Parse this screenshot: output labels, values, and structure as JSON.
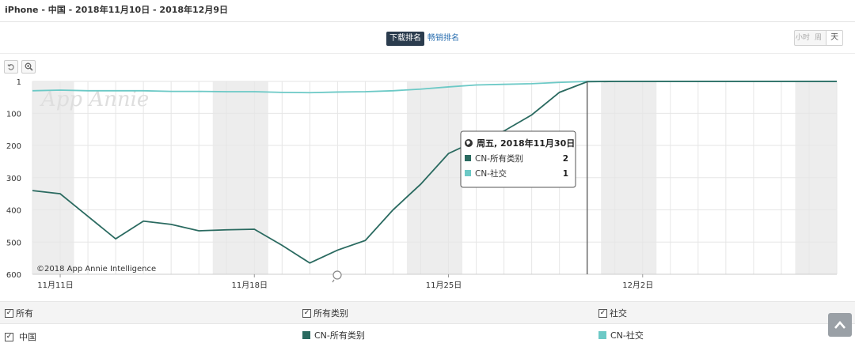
{
  "header": {
    "title": "iPhone - 中国 - 2018年11月10日 - 2018年12月9日"
  },
  "rank_tabs": {
    "download": "下载排名",
    "revenue": "畅销排名"
  },
  "granularity": {
    "hour": "小时",
    "week": "周",
    "day": "天"
  },
  "toolbar": {
    "reset_icon": "reset-icon",
    "zoom_icon": "zoom-icon"
  },
  "chart_data": {
    "type": "line",
    "watermark": "App Annie",
    "credit": "©2018 App Annie Intelligence",
    "x_ticks": [
      "11月11日",
      "11月18日",
      "11月25日",
      "12月2日"
    ],
    "y_ticks": [
      "1",
      "100",
      "200",
      "300",
      "400",
      "500",
      "600"
    ],
    "ylim": [
      1,
      600
    ],
    "y_reversed": true,
    "x": [
      "2018-11-10",
      "2018-11-11",
      "2018-11-12",
      "2018-11-13",
      "2018-11-14",
      "2018-11-15",
      "2018-11-16",
      "2018-11-17",
      "2018-11-18",
      "2018-11-19",
      "2018-11-20",
      "2018-11-21",
      "2018-11-22",
      "2018-11-23",
      "2018-11-24",
      "2018-11-25",
      "2018-11-26",
      "2018-11-27",
      "2018-11-28",
      "2018-11-29",
      "2018-11-30",
      "2018-12-01",
      "2018-12-02",
      "2018-12-03",
      "2018-12-04",
      "2018-12-05",
      "2018-12-06",
      "2018-12-07",
      "2018-12-08",
      "2018-12-09"
    ],
    "series": [
      {
        "name": "CN-所有类别",
        "color": "#2a6a60",
        "values": [
          340,
          350,
          420,
          490,
          435,
          445,
          465,
          462,
          460,
          510,
          565,
          525,
          495,
          400,
          320,
          225,
          185,
          155,
          105,
          35,
          2,
          1,
          1,
          1,
          1,
          1,
          1,
          1,
          1,
          1
        ]
      },
      {
        "name": "CN-社交",
        "color": "#6cc9c6",
        "values": [
          30,
          28,
          30,
          30,
          30,
          32,
          32,
          33,
          33,
          35,
          36,
          34,
          33,
          30,
          25,
          18,
          12,
          10,
          8,
          4,
          1,
          1,
          1,
          1,
          1,
          1,
          1,
          1,
          1,
          1
        ]
      }
    ],
    "weekend_bands": [
      [
        "2018-11-10",
        "2018-11-11"
      ],
      [
        "2018-11-17",
        "2018-11-18"
      ],
      [
        "2018-11-24",
        "2018-11-25"
      ],
      [
        "2018-12-01",
        "2018-12-02"
      ],
      [
        "2018-12-08",
        "2018-12-09"
      ]
    ],
    "tooltip": {
      "date": "周五, 2018年11月30日",
      "rows": [
        {
          "name": "CN-所有类别",
          "value": "2",
          "color": "#2a6a60"
        },
        {
          "name": "CN-社交",
          "value": "1",
          "color": "#6cc9c6"
        }
      ],
      "hover_x": "2018-11-30"
    },
    "grid": true,
    "legend": "bottom"
  },
  "legend": {
    "row1": {
      "all": "所有",
      "all_categories": "所有类别",
      "social": "社交"
    },
    "row2": {
      "country": "中国",
      "series_a": "CN-所有类别",
      "series_b": "CN-社交"
    },
    "colors": {
      "series_a": "#2a6a60",
      "series_b": "#6cc9c6"
    }
  },
  "scroll_top_icon": "chevron-up-icon"
}
